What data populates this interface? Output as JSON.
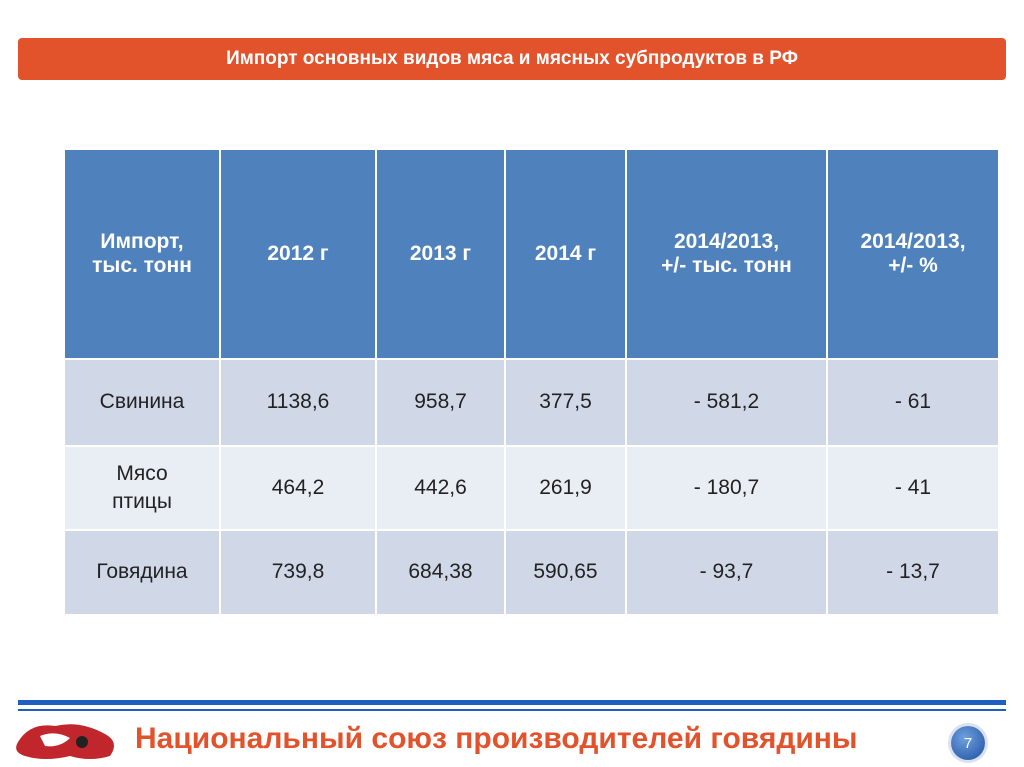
{
  "header": {
    "title": "Импорт основных видов мяса и мясных субпродуктов в РФ"
  },
  "table": {
    "columns": [
      [
        "Импорт,",
        "тыс. тонн"
      ],
      [
        "2012 г"
      ],
      [
        "2013 г"
      ],
      [
        "2014 г"
      ],
      [
        "2014/2013,",
        "+/- тыс. тонн"
      ],
      [
        "2014/2013,",
        "+/- %"
      ]
    ],
    "rows": [
      [
        [
          "Свинина"
        ],
        "1138,6",
        "958,7",
        "377,5",
        "- 581,2",
        "- 61"
      ],
      [
        [
          "Мясо",
          "птицы"
        ],
        "464,2",
        "442,6",
        "261,9",
        "- 180,7",
        "- 41"
      ],
      [
        [
          "Говядина"
        ],
        "739,8",
        "684,38",
        "590,65",
        "- 93,7",
        "- 13,7"
      ]
    ]
  },
  "footer": {
    "organization": "Национальный союз производителей говядины",
    "page_number": "7"
  }
}
